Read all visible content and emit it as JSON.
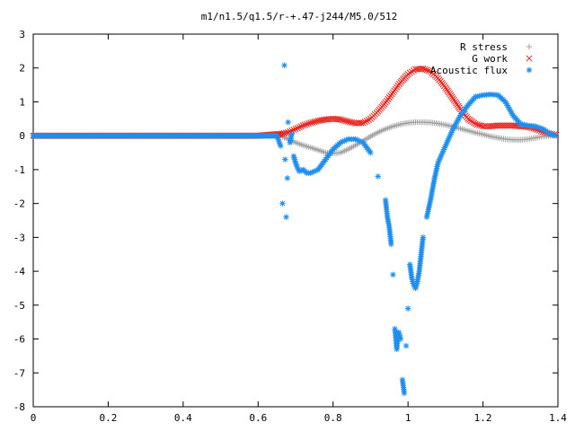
{
  "chart_data": {
    "type": "scatter",
    "title": "m1/n1.5/q1.5/r-+.47-j244/M5.0/512",
    "xlabel": "",
    "ylabel": "",
    "xlim": [
      0,
      1.4
    ],
    "ylim": [
      -8,
      3
    ],
    "grid": false,
    "legend_position": "top-right",
    "x_ticks": [
      0,
      0.2,
      0.4,
      0.6,
      0.8,
      1,
      1.2,
      1.4
    ],
    "x_tick_labels": [
      "0",
      "0.2",
      "0.4",
      "0.6",
      "0.8",
      "1",
      "1.2",
      "1.4"
    ],
    "y_ticks": [
      -8,
      -7,
      -6,
      -5,
      -4,
      -3,
      -2,
      -1,
      0,
      1,
      2,
      3
    ],
    "y_tick_labels": [
      "-8",
      "-7",
      "-6",
      "-5",
      "-4",
      "-3",
      "-2",
      "-1",
      "0",
      "1",
      "2",
      "3"
    ],
    "series": [
      {
        "name": "R stress",
        "marker": "plus",
        "color": "#a0a0a0",
        "x": [
          0.0,
          0.1,
          0.2,
          0.3,
          0.4,
          0.5,
          0.6,
          0.66,
          0.68,
          0.7,
          0.72,
          0.74,
          0.76,
          0.78,
          0.8,
          0.82,
          0.84,
          0.86,
          0.88,
          0.9,
          0.92,
          0.94,
          0.96,
          0.98,
          1.0,
          1.02,
          1.04,
          1.06,
          1.08,
          1.1,
          1.12,
          1.14,
          1.16,
          1.18,
          1.2,
          1.22,
          1.24,
          1.26,
          1.28,
          1.3,
          1.32,
          1.34,
          1.36,
          1.38,
          1.395
        ],
        "y": [
          0,
          0,
          0,
          0,
          0,
          0,
          0,
          0,
          -0.1,
          -0.2,
          -0.28,
          -0.35,
          -0.42,
          -0.5,
          -0.52,
          -0.5,
          -0.4,
          -0.28,
          -0.15,
          -0.02,
          0.1,
          0.2,
          0.28,
          0.34,
          0.38,
          0.4,
          0.4,
          0.39,
          0.36,
          0.32,
          0.27,
          0.21,
          0.15,
          0.09,
          0.04,
          -0.02,
          -0.06,
          -0.1,
          -0.12,
          -0.12,
          -0.1,
          -0.06,
          -0.02,
          0.0,
          0.0
        ]
      },
      {
        "name": "G work",
        "marker": "cross",
        "color": "#e8231b",
        "x": [
          0.0,
          0.1,
          0.2,
          0.3,
          0.4,
          0.5,
          0.6,
          0.66,
          0.68,
          0.7,
          0.72,
          0.74,
          0.76,
          0.78,
          0.8,
          0.82,
          0.84,
          0.86,
          0.88,
          0.9,
          0.92,
          0.94,
          0.96,
          0.98,
          1.0,
          1.02,
          1.04,
          1.06,
          1.08,
          1.1,
          1.12,
          1.14,
          1.16,
          1.18,
          1.2,
          1.22,
          1.24,
          1.26,
          1.28,
          1.3,
          1.32,
          1.34,
          1.36,
          1.38,
          1.395
        ],
        "y": [
          0,
          0,
          0,
          0,
          0,
          0,
          0,
          0.05,
          0.1,
          0.2,
          0.3,
          0.38,
          0.44,
          0.48,
          0.5,
          0.48,
          0.42,
          0.37,
          0.38,
          0.5,
          0.72,
          0.98,
          1.28,
          1.58,
          1.82,
          1.96,
          1.98,
          1.9,
          1.7,
          1.42,
          1.1,
          0.78,
          0.5,
          0.35,
          0.28,
          0.28,
          0.3,
          0.3,
          0.3,
          0.28,
          0.26,
          0.2,
          0.12,
          0.06,
          0.02
        ]
      },
      {
        "name": "Acoustic flux",
        "marker": "star",
        "color": "#1e8ef0",
        "x": [
          0.0,
          0.1,
          0.2,
          0.3,
          0.4,
          0.5,
          0.6,
          0.65,
          0.66,
          0.665,
          0.67,
          0.672,
          0.675,
          0.678,
          0.68,
          0.685,
          0.69,
          0.695,
          0.7,
          0.705,
          0.71,
          0.72,
          0.73,
          0.74,
          0.76,
          0.78,
          0.8,
          0.82,
          0.84,
          0.86,
          0.88,
          0.9,
          0.92,
          0.94,
          0.945,
          0.95,
          0.955,
          0.96,
          0.965,
          0.97,
          0.975,
          0.98,
          0.985,
          0.99,
          0.995,
          1.0,
          1.005,
          1.01,
          1.015,
          1.02,
          1.025,
          1.03,
          1.035,
          1.04,
          1.05,
          1.06,
          1.07,
          1.08,
          1.1,
          1.12,
          1.14,
          1.16,
          1.18,
          1.2,
          1.22,
          1.24,
          1.26,
          1.28,
          1.3,
          1.32,
          1.34,
          1.36,
          1.38,
          1.395
        ],
        "y": [
          0,
          0,
          0,
          0,
          0,
          0,
          0,
          0,
          -0.3,
          -2.0,
          2.08,
          -0.7,
          -2.4,
          -1.25,
          0.4,
          -0.2,
          0.05,
          -0.6,
          -0.8,
          -0.95,
          -1.05,
          -1.0,
          -1.1,
          -1.1,
          -1.0,
          -0.7,
          -0.4,
          -0.2,
          -0.1,
          -0.1,
          -0.2,
          -0.5,
          -1.2,
          -1.9,
          -2.4,
          -2.7,
          -3.2,
          -4.1,
          -5.7,
          -6.3,
          -5.8,
          -6.0,
          -7.2,
          -7.6,
          -6.2,
          -5.1,
          -3.8,
          -4.2,
          -4.4,
          -4.5,
          -4.3,
          -4.0,
          -3.5,
          -3.0,
          -2.4,
          -1.9,
          -1.3,
          -0.8,
          -0.3,
          0.2,
          0.6,
          0.9,
          1.15,
          1.2,
          1.22,
          1.2,
          1.0,
          0.6,
          0.35,
          0.3,
          0.28,
          0.2,
          0.05,
          0.0
        ]
      }
    ]
  }
}
